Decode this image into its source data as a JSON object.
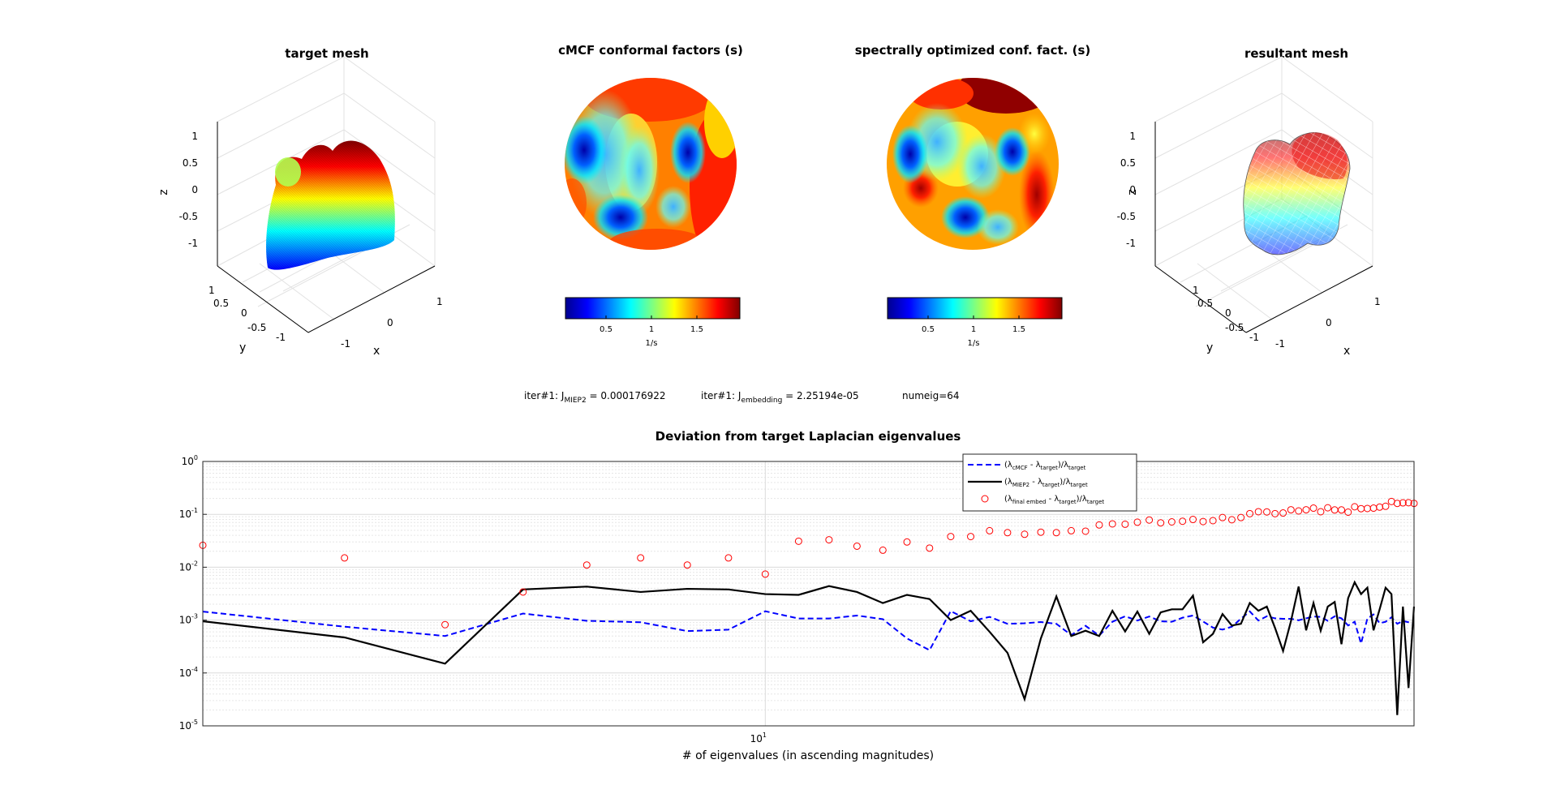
{
  "panels": [
    {
      "title": "target mesh",
      "x_label": "x",
      "y_label": "y",
      "z_label": "z",
      "z_ticks": [
        "1",
        "0.5",
        "0",
        "-0.5",
        "-1"
      ],
      "y_ticks": [
        "1",
        "0.5",
        "0",
        "-0.5",
        "-1"
      ],
      "x_ticks": [
        "-1",
        "0",
        "1"
      ]
    },
    {
      "title": "cMCF conformal factors (s)"
    },
    {
      "title": "spectrally optimized conf. fact. (s)"
    },
    {
      "title": "resultant mesh",
      "x_label": "x",
      "y_label": "y",
      "z_label": "z",
      "z_ticks": [
        "1",
        "0.5",
        "0",
        "-0.5",
        "-1"
      ],
      "y_ticks": [
        "1",
        "0.5",
        "0",
        "-0.5",
        "-1"
      ],
      "x_ticks": [
        "-1",
        "0",
        "1"
      ]
    }
  ],
  "colorbar": {
    "ticks": [
      "0.5",
      "1",
      "1.5"
    ],
    "label": "1/s"
  },
  "info": {
    "j_miep2_prefix": "iter#1: J",
    "j_miep2_sub": "MIEP2",
    "j_miep2_value": " = 0.000176922",
    "j_embed_prefix": "iter#1: J",
    "j_embed_sub": "embedding",
    "j_embed_value": " = 2.25194e-05",
    "numeig": "numeig=64"
  },
  "colors": {
    "cmcf": "#0000ff",
    "miep2": "#000000",
    "final": "#ff0000"
  },
  "chart_data": {
    "type": "line",
    "title": "Deviation from target Laplacian eigenvalues",
    "xlabel": "# of eigenvalues (in ascending magnitudes)",
    "ylabel": "",
    "xscale": "log",
    "yscale": "log",
    "xlim": [
      2,
      64
    ],
    "ylim": [
      1e-05,
      1
    ],
    "x_tick_base": "10",
    "x_tick_exp": "1",
    "y_tick_exps": [
      "-5",
      "-4",
      "-3",
      "-2",
      "-1",
      "0"
    ],
    "grid": true,
    "legend_position": "top-right",
    "x": [
      2,
      3,
      4,
      5,
      6,
      7,
      8,
      9,
      10,
      11,
      12,
      13,
      14,
      15,
      16,
      17,
      18,
      19,
      20,
      21,
      22,
      23,
      24,
      25,
      26,
      27,
      28,
      29,
      30,
      31,
      32,
      33,
      34,
      35,
      36,
      37,
      38,
      39,
      40,
      41,
      42,
      43,
      44,
      45,
      46,
      47,
      48,
      49,
      50,
      51,
      52,
      53,
      54,
      55,
      56,
      57,
      58,
      59,
      60,
      61,
      62,
      63,
      64
    ],
    "series": [
      {
        "name": "cmcf",
        "style": "dashed",
        "legend": {
          "pre": "(λ",
          "sub1": "cMCF",
          "mid": " - λ",
          "sub2": "target",
          "post": ")/λ",
          "sub3": "target"
        },
        "values": [
          0.00145,
          0.00075,
          0.0005,
          0.00133,
          0.00097,
          0.00091,
          0.00062,
          0.00066,
          0.00147,
          0.00107,
          0.00107,
          0.00122,
          0.00104,
          0.00045,
          0.00027,
          0.00148,
          0.00095,
          0.00115,
          0.00085,
          0.00087,
          0.00092,
          0.00085,
          0.00052,
          0.00078,
          0.00051,
          0.00093,
          0.00118,
          0.00098,
          0.00117,
          0.00095,
          0.00093,
          0.00111,
          0.00122,
          0.00094,
          0.00072,
          0.00066,
          0.00075,
          0.00106,
          0.00146,
          0.00098,
          0.00118,
          0.00108,
          0.00106,
          0.00106,
          0.00099,
          0.00108,
          0.00117,
          0.00115,
          0.00097,
          0.00118,
          0.00108,
          0.00079,
          0.00093,
          0.00036,
          0.00107,
          0.00128,
          0.00087,
          0.00093,
          0.00113,
          0.00085,
          0.00096,
          0.00091,
          0.00085
        ]
      },
      {
        "name": "miep2",
        "style": "solid",
        "legend": {
          "pre": "(λ",
          "sub1": "MIEP2",
          "mid": " - λ",
          "sub2": "target",
          "post": ")/λ",
          "sub3": "target"
        },
        "values": [
          0.00095,
          0.00047,
          0.00015,
          0.0038,
          0.0043,
          0.0034,
          0.0039,
          0.0038,
          0.0031,
          0.003,
          0.0044,
          0.0034,
          0.0021,
          0.003,
          0.0025,
          0.001,
          0.0015,
          0.0006,
          0.00024,
          3.2e-05,
          0.00045,
          0.0028,
          0.0005,
          0.00063,
          0.0005,
          0.0015,
          0.00061,
          0.00145,
          0.00055,
          0.0014,
          0.0016,
          0.0016,
          0.0029,
          0.00038,
          0.00055,
          0.0013,
          0.00079,
          0.00085,
          0.0021,
          0.0015,
          0.0018,
          0.00071,
          0.00026,
          0.00095,
          0.0043,
          0.00064,
          0.0021,
          0.00063,
          0.0018,
          0.0022,
          0.00035,
          0.0026,
          0.0052,
          0.0031,
          0.0041,
          0.00064,
          0.0016,
          0.0041,
          0.0031,
          1.6e-05,
          0.0018,
          5.2e-05,
          0.0018
        ]
      },
      {
        "name": "final_embed",
        "style": "markers",
        "legend": {
          "pre": "(λ",
          "sub1": "final embed",
          "mid": " - λ",
          "sub2": "target",
          "post": ")/λ",
          "sub3": "target"
        },
        "values": [
          0.026,
          0.015,
          0.00082,
          0.0034,
          0.011,
          0.015,
          0.011,
          0.015,
          0.0074,
          0.031,
          0.033,
          0.025,
          0.021,
          0.03,
          0.023,
          0.038,
          0.038,
          0.049,
          0.045,
          0.042,
          0.046,
          0.045,
          0.049,
          0.048,
          0.063,
          0.066,
          0.065,
          0.071,
          0.078,
          0.069,
          0.072,
          0.074,
          0.08,
          0.073,
          0.076,
          0.087,
          0.079,
          0.087,
          0.103,
          0.112,
          0.111,
          0.103,
          0.106,
          0.122,
          0.116,
          0.122,
          0.131,
          0.112,
          0.133,
          0.121,
          0.121,
          0.11,
          0.139,
          0.128,
          0.129,
          0.131,
          0.137,
          0.142,
          0.175,
          0.161,
          0.165,
          0.166,
          0.161
        ]
      }
    ]
  }
}
